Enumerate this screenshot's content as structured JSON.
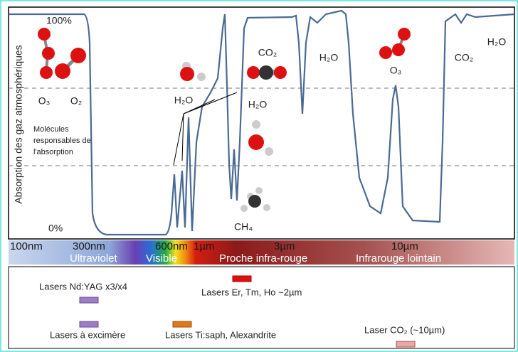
{
  "axis": {
    "y_title": "Absorption des gaz atmosphériques",
    "top": "100%",
    "bottom": "0%"
  },
  "annotation": [
    "Molécules",
    "responsables de",
    "l'absorption"
  ],
  "molecules": [
    "O₃",
    "O₂",
    "H₂O",
    "CO₂",
    "H₂O",
    "H₂O",
    "CH₄",
    "O₃",
    "CO₂",
    "H₂O"
  ],
  "wavelengths": [
    "100nm",
    "300nm",
    "600nm",
    "1µm",
    "3µm",
    "10µm"
  ],
  "bands": [
    "Ultraviolet",
    "Visible",
    "Proche infra-rouge",
    "Infrarouge lointain"
  ],
  "lasers": [
    "Lasers Nd:YAG x3/x4",
    "Lasers Er, Tm, Ho ~2µm",
    "Lasers à excimère",
    "Lasers Ti:saph, Alexandrite",
    "Laser CO₂ (~10µm)"
  ]
}
